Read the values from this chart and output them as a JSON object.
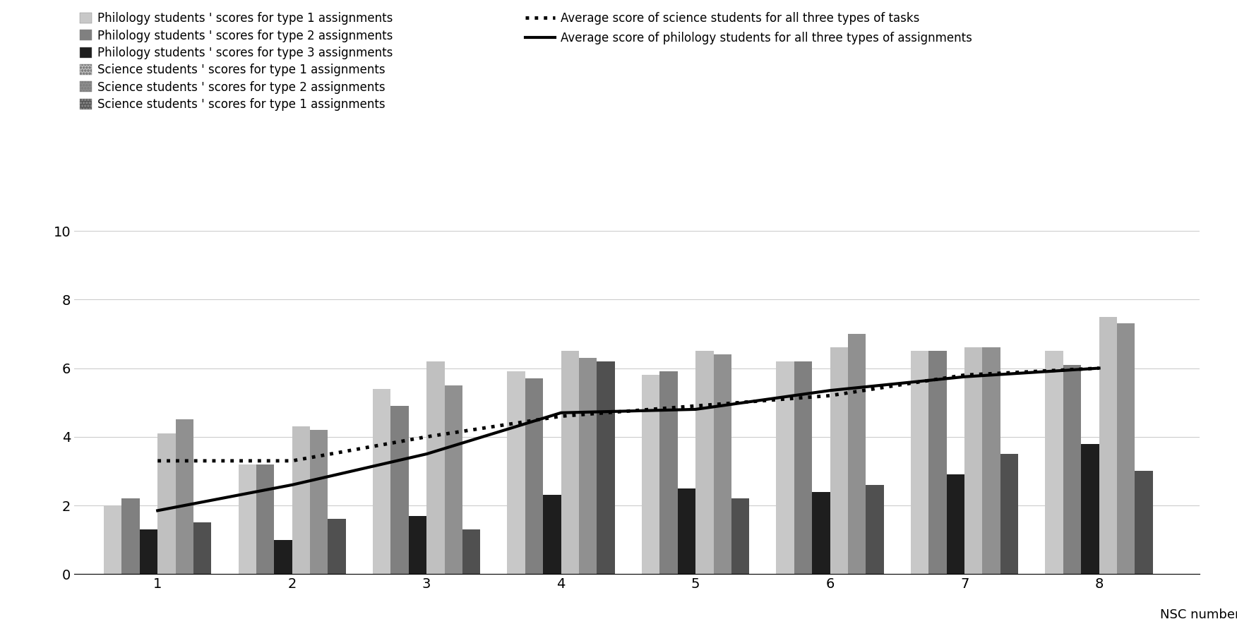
{
  "nsc_numbers": [
    1,
    2,
    3,
    4,
    5,
    6,
    7,
    8
  ],
  "philology_type1": [
    2.0,
    3.2,
    5.4,
    5.9,
    5.8,
    6.2,
    6.5,
    6.5
  ],
  "philology_type2": [
    2.2,
    3.2,
    4.9,
    5.7,
    5.9,
    6.2,
    6.5,
    6.1
  ],
  "philology_type3": [
    1.3,
    1.0,
    1.7,
    2.3,
    2.5,
    2.4,
    2.9,
    3.8
  ],
  "science_type1": [
    4.1,
    4.3,
    6.2,
    6.5,
    6.5,
    6.6,
    6.6,
    7.5
  ],
  "science_type2": [
    4.5,
    4.2,
    5.5,
    6.3,
    6.4,
    7.0,
    6.6,
    7.3
  ],
  "science_type3": [
    1.5,
    1.6,
    1.3,
    6.2,
    2.2,
    2.6,
    3.5,
    3.0
  ],
  "avg_science": [
    3.3,
    3.3,
    4.0,
    4.6,
    4.9,
    5.2,
    5.8,
    6.0
  ],
  "avg_philology": [
    1.85,
    2.6,
    3.5,
    4.7,
    4.8,
    5.35,
    5.75,
    6.0
  ],
  "philology_type1_color": "#c8c8c8",
  "philology_type2_color": "#808080",
  "philology_type3_color": "#1e1e1e",
  "legend_labels_left": [
    "Philology students ' scores for type 1 assignments",
    "Philology students ' scores for type 2 assignments",
    "Philology students ' scores for type 3 assignments",
    "Science students ' scores for type 1 assignments",
    "Science students ' scores for type 2 assignments",
    "Science students ' scores for type 1 assignments"
  ],
  "legend_labels_right": [
    "Average score of science students for all three types of tasks",
    "Average score of philology students for all three types of assignments"
  ],
  "xlabel": "NSC number",
  "ylim": [
    0,
    10
  ],
  "yticks": [
    0,
    2,
    4,
    6,
    8,
    10
  ]
}
